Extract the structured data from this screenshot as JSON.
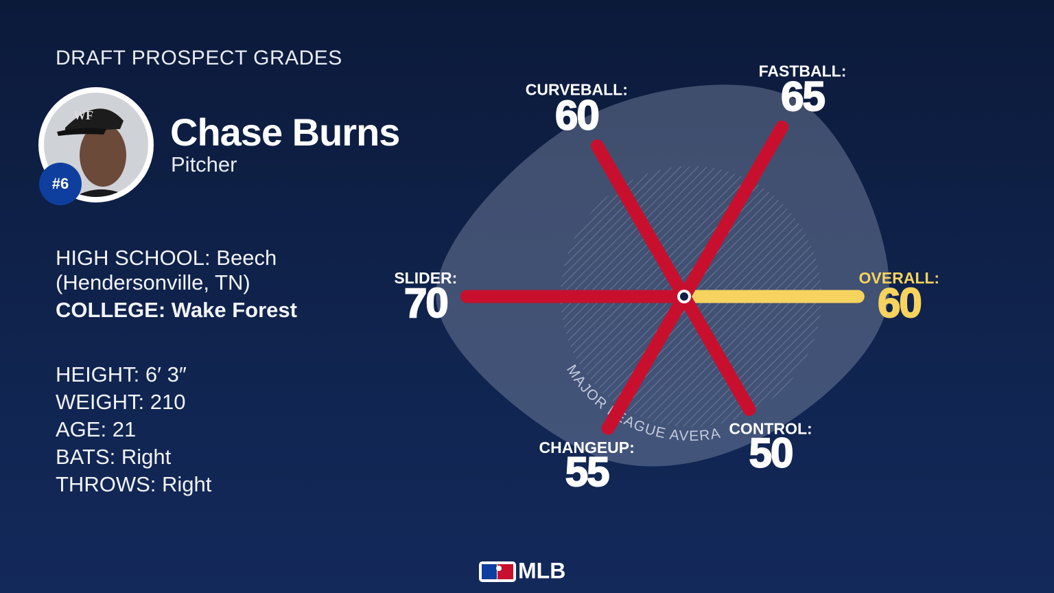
{
  "header": {
    "kicker": "DRAFT PROSPECT GRADES"
  },
  "player": {
    "name": "Chase Burns",
    "position": "Pitcher",
    "rank": "#6",
    "high_school_label": "HIGH SCHOOL:",
    "high_school": "Beech (Hendersonville, TN)",
    "college_label": "COLLEGE:",
    "college": "Wake Forest",
    "stats": [
      [
        "HEIGHT:",
        "6′ 3″"
      ],
      [
        "WEIGHT:",
        "210"
      ],
      [
        "AGE:",
        "21"
      ],
      [
        "BATS:",
        "Right"
      ],
      [
        "THROWS:",
        "Right"
      ]
    ]
  },
  "chart_data": {
    "type": "radar",
    "categories": [
      "OVERALL:",
      "FASTBALL:",
      "CURVEBALL:",
      "SLIDER:",
      "CHANGEUP:",
      "CONTROL:"
    ],
    "values": [
      60,
      65,
      60,
      70,
      55,
      50
    ],
    "colors": [
      "#f6d35e",
      "#c8102e",
      "#c8102e",
      "#c8102e",
      "#c8102e",
      "#c8102e"
    ],
    "rlim": [
      20,
      80
    ],
    "average": 50,
    "average_label": "MAJOR LEAGUE AVERAGE"
  },
  "footer": {
    "brand": "MLB"
  }
}
